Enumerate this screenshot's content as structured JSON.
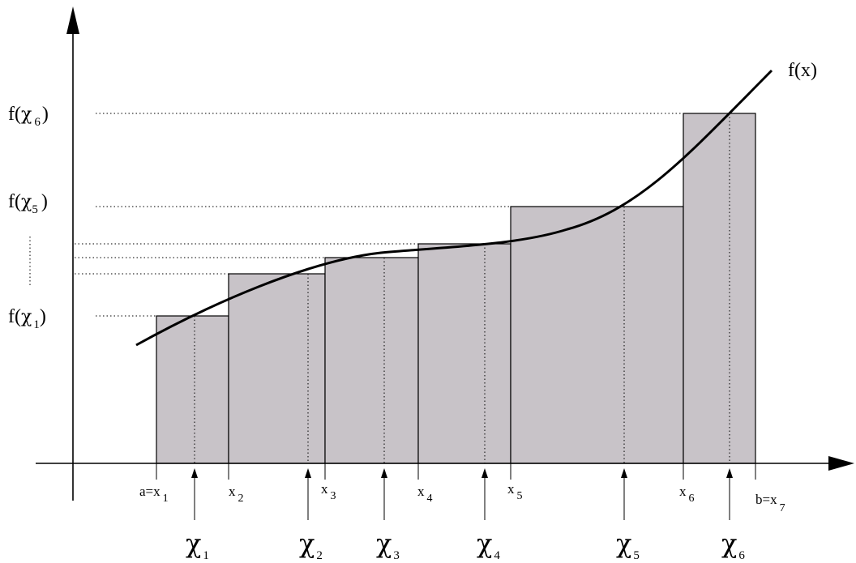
{
  "curve_label": "f(x)",
  "y_labels": [
    {
      "func": "f(",
      "greek": "χ",
      "sub": "6",
      "close": ")"
    },
    {
      "func": "f(",
      "greek": "χ",
      "sub": "5",
      "close": ")"
    },
    {
      "func": "f(",
      "greek": "χ",
      "sub": "1",
      "close": ")"
    }
  ],
  "x_labels": [
    {
      "base": "a=x",
      "sub": "1"
    },
    {
      "base": "x",
      "sub": "2"
    },
    {
      "base": "x",
      "sub": "3"
    },
    {
      "base": "x",
      "sub": "4"
    },
    {
      "base": "x",
      "sub": "5"
    },
    {
      "base": "x",
      "sub": "6"
    },
    {
      "base": "b=x",
      "sub": "7"
    }
  ],
  "chi_labels": [
    {
      "greek": "χ",
      "sub": "1"
    },
    {
      "greek": "χ",
      "sub": "2"
    },
    {
      "greek": "χ",
      "sub": "3"
    },
    {
      "greek": "χ",
      "sub": "4"
    },
    {
      "greek": "χ",
      "sub": "5"
    },
    {
      "greek": "χ",
      "sub": "6"
    }
  ],
  "colors": {
    "bar_fill": "#c8c3c8",
    "line": "#000000"
  }
}
